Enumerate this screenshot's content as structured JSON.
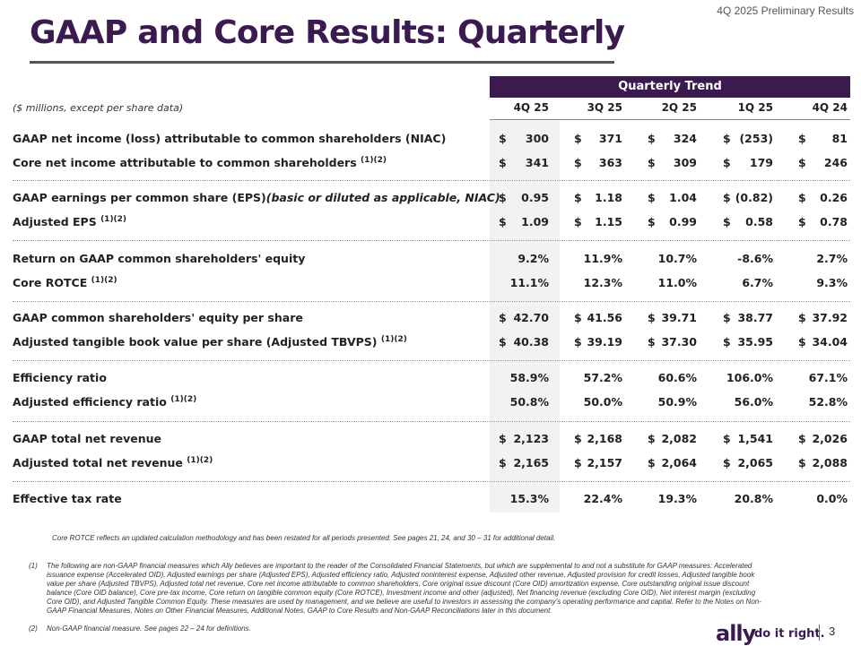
{
  "header": {
    "top_right": "4Q 2025 Preliminary Results",
    "title": "GAAP and Core Results: Quarterly"
  },
  "table": {
    "group_header": "Quarterly Trend",
    "units_note": "($ millions, except per share data)",
    "columns": [
      "4Q 25",
      "3Q 25",
      "2Q 25",
      "1Q 25",
      "4Q 24"
    ],
    "rows": [
      {
        "label": "GAAP net income (loss) attributable to common shareholders (NIAC)",
        "sup": "",
        "italic": "",
        "dollar": true,
        "values": [
          "300",
          "371",
          "324",
          "(253)",
          "81"
        ]
      },
      {
        "label": "Core net income attributable to common shareholders",
        "sup": "(1)(2)",
        "italic": "",
        "dollar": true,
        "values": [
          "341",
          "363",
          "309",
          "179",
          "246"
        ]
      },
      {
        "label": "GAAP earnings per common share (EPS)",
        "sup": "",
        "italic": "(basic or diluted as applicable, NIAC)",
        "dollar": true,
        "values": [
          "0.95",
          "1.18",
          "1.04",
          "(0.82)",
          "0.26"
        ]
      },
      {
        "label": "Adjusted EPS",
        "sup": "(1)(2)",
        "italic": "",
        "dollar": true,
        "values": [
          "1.09",
          "1.15",
          "0.99",
          "0.58",
          "0.78"
        ]
      },
      {
        "label": "Return on GAAP common shareholders' equity",
        "sup": "",
        "italic": "",
        "dollar": false,
        "values": [
          "9.2%",
          "11.9%",
          "10.7%",
          "-8.6%",
          "2.7%"
        ]
      },
      {
        "label": "Core ROTCE",
        "sup": "(1)(2)",
        "italic": "",
        "dollar": false,
        "values": [
          "11.1%",
          "12.3%",
          "11.0%",
          "6.7%",
          "9.3%"
        ]
      },
      {
        "label": "GAAP common shareholders' equity per share",
        "sup": "",
        "italic": "",
        "dollar": true,
        "values": [
          "42.70",
          "41.56",
          "39.71",
          "38.77",
          "37.92"
        ]
      },
      {
        "label": "Adjusted tangible book value per share (Adjusted TBVPS)",
        "sup": "(1)(2)",
        "italic": "",
        "dollar": true,
        "values": [
          "40.38",
          "39.19",
          "37.30",
          "35.95",
          "34.04"
        ]
      },
      {
        "label": "Efficiency ratio",
        "sup": "",
        "italic": "",
        "dollar": false,
        "values": [
          "58.9%",
          "57.2%",
          "60.6%",
          "106.0%",
          "67.1%"
        ]
      },
      {
        "label": "Adjusted efficiency ratio",
        "sup": "(1)(2)",
        "italic": "",
        "dollar": false,
        "values": [
          "50.8%",
          "50.0%",
          "50.9%",
          "56.0%",
          "52.8%"
        ]
      },
      {
        "label": "GAAP total net revenue",
        "sup": "",
        "italic": "",
        "dollar": true,
        "values": [
          "2,123",
          "2,168",
          "2,082",
          "1,541",
          "2,026"
        ]
      },
      {
        "label": "Adjusted total net revenue",
        "sup": "(1)(2)",
        "italic": "",
        "dollar": true,
        "values": [
          "2,165",
          "2,157",
          "2,064",
          "2,065",
          "2,088"
        ]
      },
      {
        "label": "Effective tax rate",
        "sup": "",
        "italic": "",
        "dollar": false,
        "values": [
          "15.3%",
          "22.4%",
          "19.3%",
          "20.8%",
          "0.0%"
        ]
      }
    ]
  },
  "notes": {
    "core_rotce": "Core ROTCE reflects an updated calculation methodology and has been restated for all periods presented. See pages 21, 24, and 30 – 31 for additional detail.",
    "fn1_marker": "(1)",
    "fn1_text": "The following are non-GAAP financial measures which Ally believes are important to the reader of the Consolidated Financial Statements, but which are supplemental to and not a substitute for GAAP measures: Accelerated issuance expense (Accelerated OID), Adjusted earnings per share (Adjusted EPS), Adjusted efficiency ratio, Adjusted noninterest expense, Adjusted other revenue, Adjusted provision for credit losses, Adjusted tangible book value per share (Adjusted TBVPS), Adjusted total net revenue, Core net income attributable to common shareholders, Core original issue discount (Core OID) amortization expense, Core outstanding original issue discount balance (Core OID balance), Core pre-tax income, Core return on tangible common equity (Core ROTCE), Investment income and other (adjusted), Net financing revenue (excluding Core OID), Net interest margin (excluding Core OID), and Adjusted Tangible Common Equity. These measures are used by management, and we believe are useful to investors in assessing the company’s operating performance and capital. Refer to the Notes on Non-GAAP Financial Measures, Notes on Other Financial Measures, Additional Notes, GAAP to Core Results and Non-GAAP Reconciliations later in this document.",
    "fn2_marker": "(2)",
    "fn2_text": "Non-GAAP financial measure. See pages 22 – 24 for definitions."
  },
  "footer": {
    "logo": "ally",
    "tagline": "do it right.",
    "page_number": "3"
  },
  "colors": {
    "brand_purple": "#3b1a4f"
  }
}
